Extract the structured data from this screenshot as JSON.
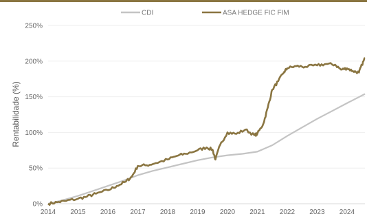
{
  "chart_data": {
    "type": "line",
    "xlabel": "",
    "ylabel": "Rentabilidade (%)",
    "xlim": [
      2014.0,
      2024.6
    ],
    "ylim": [
      0,
      250
    ],
    "x_ticks": [
      "2014",
      "2015",
      "2016",
      "2017",
      "2018",
      "2019",
      "2020",
      "2021",
      "2022",
      "2023",
      "2024"
    ],
    "y_ticks": [
      "0%",
      "50%",
      "100%",
      "150%",
      "200%",
      "250%"
    ],
    "y_tick_values": [
      0,
      50,
      100,
      150,
      200,
      250
    ],
    "grid": "horizontal",
    "legend_position": "top-center",
    "accent_color": "#8a7541",
    "series": [
      {
        "name": "CDI",
        "color": "#c4c4c4",
        "x": [
          2014.0,
          2014.5,
          2015.0,
          2015.5,
          2016.0,
          2016.5,
          2017.0,
          2017.5,
          2018.0,
          2018.5,
          2019.0,
          2019.5,
          2020.0,
          2020.5,
          2021.0,
          2021.5,
          2022.0,
          2022.5,
          2023.0,
          2023.5,
          2024.0,
          2024.6
        ],
        "values": [
          0,
          5,
          11,
          18,
          25,
          32,
          40,
          46,
          51,
          56,
          61,
          65,
          68,
          70,
          73,
          82,
          95,
          107,
          119,
          130,
          141,
          154
        ]
      },
      {
        "name": "ASA HEDGE FIC FIM",
        "color": "#8a7541",
        "x": [
          2014.0,
          2014.3,
          2014.6,
          2015.0,
          2015.3,
          2015.6,
          2016.0,
          2016.3,
          2016.6,
          2016.8,
          2017.0,
          2017.3,
          2017.6,
          2018.0,
          2018.3,
          2018.6,
          2019.0,
          2019.3,
          2019.5,
          2019.6,
          2019.75,
          2020.0,
          2020.3,
          2020.6,
          2020.9,
          2021.0,
          2021.2,
          2021.35,
          2021.5,
          2021.7,
          2021.9,
          2022.0,
          2022.3,
          2022.6,
          2023.0,
          2023.3,
          2023.6,
          2023.8,
          2024.0,
          2024.2,
          2024.4,
          2024.5,
          2024.6
        ],
        "values": [
          0,
          2,
          4,
          7,
          10,
          14,
          19,
          25,
          31,
          38,
          53,
          54,
          57,
          62,
          67,
          70,
          75,
          79,
          76,
          62,
          82,
          100,
          98,
          104,
          96,
          98,
          112,
          135,
          160,
          172,
          185,
          190,
          193,
          192,
          194,
          196,
          195,
          188,
          190,
          186,
          184,
          195,
          204
        ]
      }
    ]
  }
}
